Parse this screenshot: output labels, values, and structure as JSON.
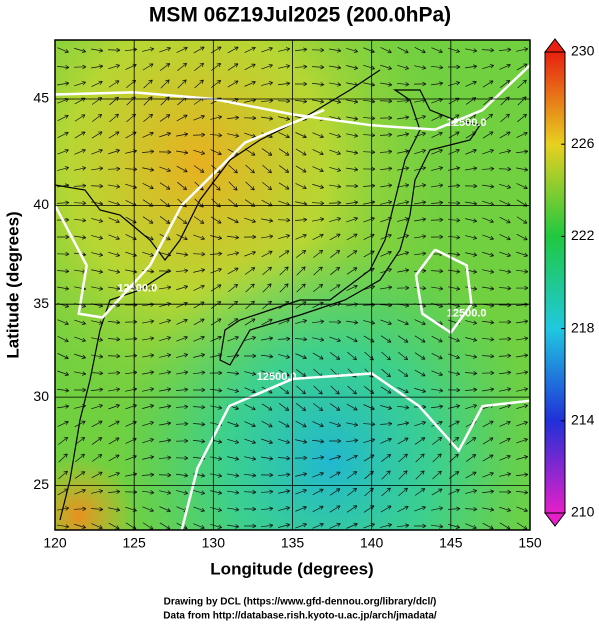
{
  "chart_data": {
    "type": "map",
    "title": "MSM 06Z19Jul2025 (200.0hPa)",
    "xlabel": "Longitude (degrees)",
    "ylabel": "Latitude  (degrees)",
    "projection": "mercator",
    "xlim": [
      120,
      150
    ],
    "xticks": [
      120,
      125,
      130,
      135,
      140,
      145,
      150
    ],
    "ylim": [
      22.4,
      47.6
    ],
    "yticks": [
      25,
      30,
      35,
      40,
      45
    ],
    "grid": true,
    "colorbar": {
      "lim": [
        210,
        230
      ],
      "ticks": [
        210,
        214,
        218,
        222,
        226,
        230
      ],
      "colors": [
        "#e61fc8",
        "#2030d8",
        "#20c8e0",
        "#20c840",
        "#e8d020",
        "#e82010"
      ]
    },
    "contour": {
      "label": "12500.0",
      "lines": [
        [
          [
            120,
            45.2
          ],
          [
            125,
            45.3
          ],
          [
            130,
            45.0
          ],
          [
            135,
            44.3
          ],
          [
            140,
            43.8
          ],
          [
            144,
            43.6
          ],
          [
            147,
            44.5
          ],
          [
            150,
            46.5
          ]
        ],
        [
          [
            120,
            40
          ],
          [
            122,
            37
          ],
          [
            121.5,
            34.5
          ],
          [
            123,
            34.3
          ],
          [
            126,
            37
          ],
          [
            128,
            40
          ],
          [
            132,
            43
          ],
          [
            137,
            44.5
          ]
        ],
        [
          [
            144,
            37.8
          ],
          [
            146,
            37
          ],
          [
            146.3,
            35
          ],
          [
            145,
            33.5
          ],
          [
            143.2,
            34.5
          ],
          [
            142.8,
            36.5
          ],
          [
            144,
            37.8
          ]
        ],
        [
          [
            128,
            22.4
          ],
          [
            129,
            26
          ],
          [
            131,
            29.5
          ],
          [
            135,
            31
          ],
          [
            140,
            31.3
          ],
          [
            143,
            29.5
          ],
          [
            145.5,
            27
          ],
          [
            147,
            29.5
          ],
          [
            150,
            29.8
          ]
        ]
      ],
      "label_at": [
        [
          146,
          43.9
        ],
        [
          125.2,
          35.8
        ],
        [
          146,
          34.5
        ],
        [
          134,
          31.1
        ]
      ]
    },
    "footer": [
      "Drawing by DCL (https://www.gfd-dennou.org/library/dcl/)",
      "Data from http://database.rish.kyoto-u.ac.jp/arch/jmadata/"
    ]
  }
}
